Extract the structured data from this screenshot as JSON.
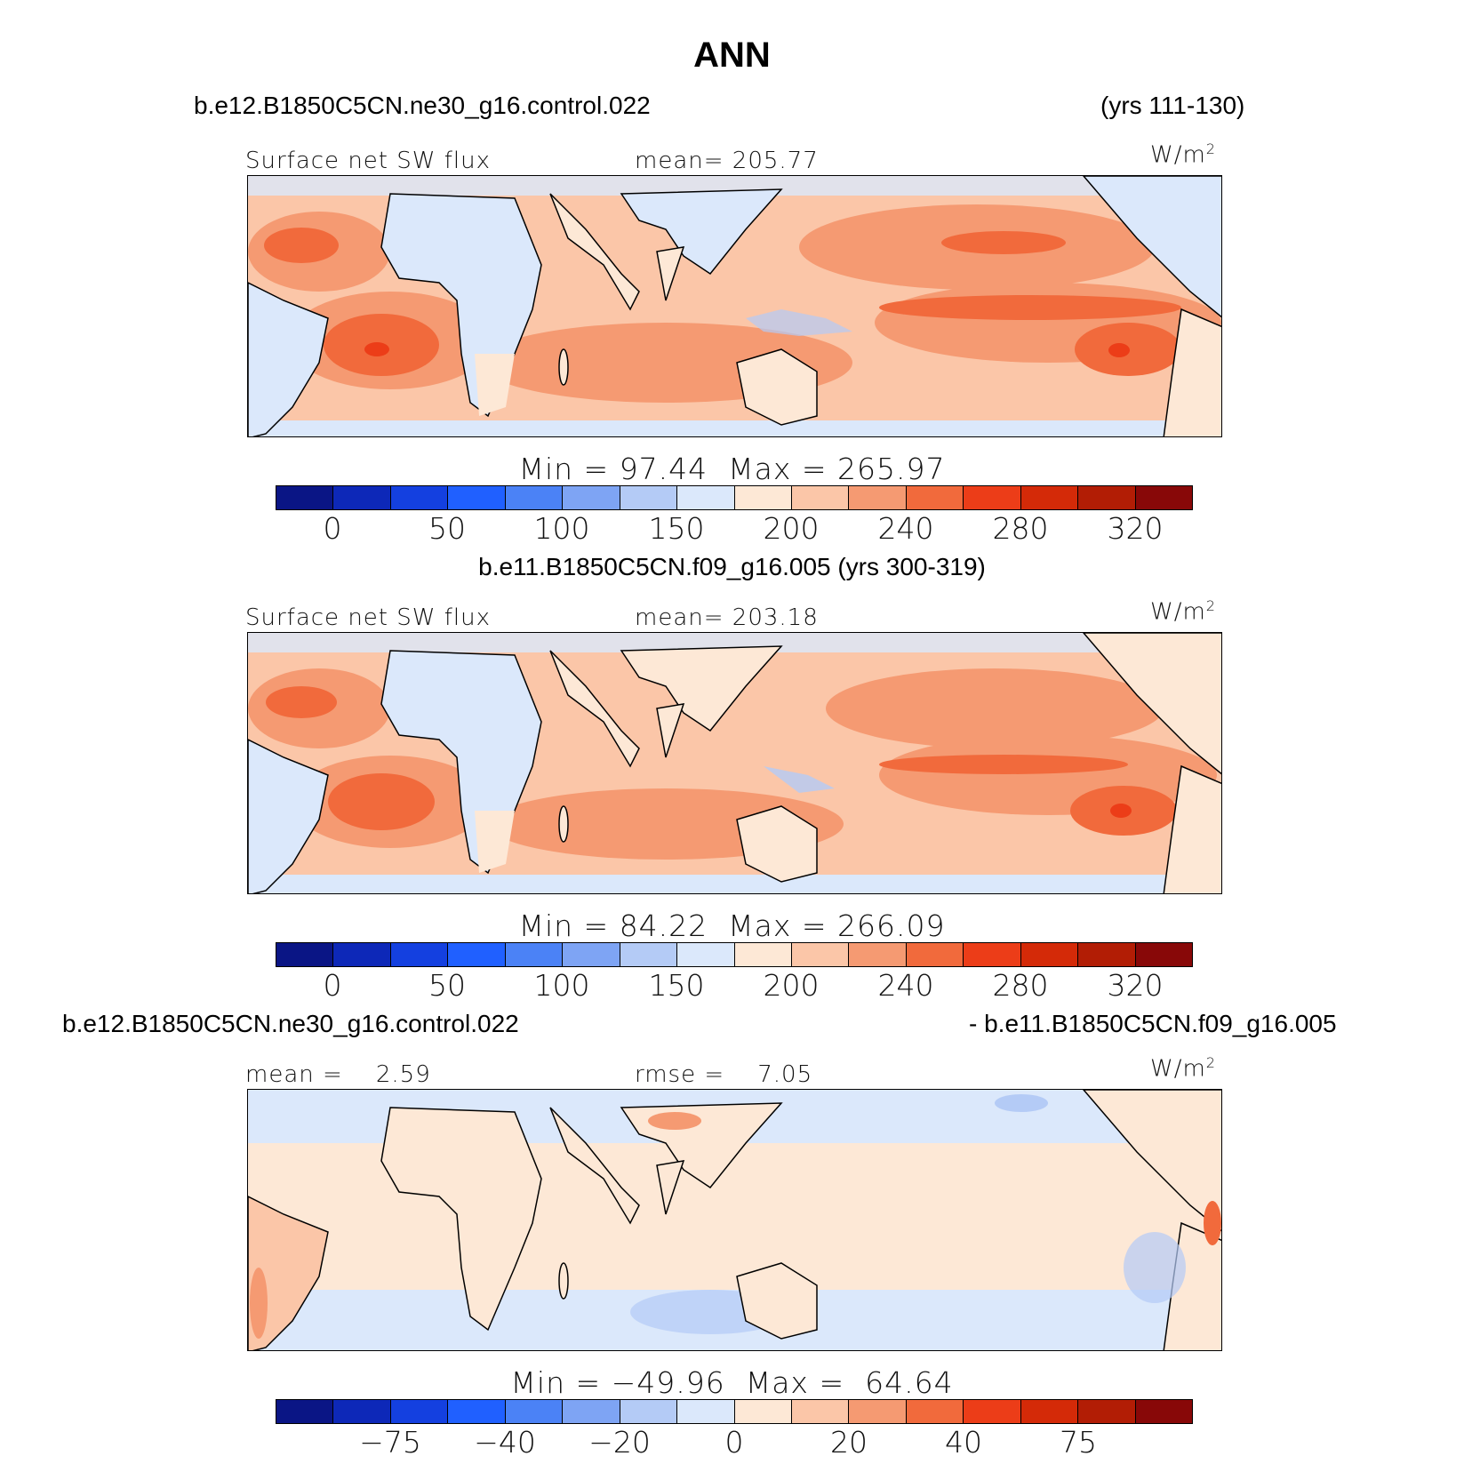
{
  "title": "ANN",
  "panels": [
    {
      "case_left": "b.e12.B1850C5CN.ne30_g16.control.022",
      "case_right": "(yrs 111-130)",
      "var_label": "Surface net SW flux",
      "stat_label": "mean= 205.77",
      "units": "W/m",
      "units_sup": "2",
      "min_label": "Min",
      "min_value": "97.44",
      "max_label": "Max",
      "max_value": "265.97",
      "ticks": [
        "0",
        "50",
        "100",
        "150",
        "200",
        "240",
        "280",
        "320"
      ]
    },
    {
      "case_center": "b.e11.B1850C5CN.f09_g16.005 (yrs 300-319)",
      "var_label": "Surface net SW flux",
      "stat_label": "mean= 203.18",
      "units": "W/m",
      "units_sup": "2",
      "min_label": "Min",
      "min_value": "84.22",
      "max_label": "Max",
      "max_value": "266.09",
      "ticks": [
        "0",
        "50",
        "100",
        "150",
        "200",
        "240",
        "280",
        "320"
      ]
    },
    {
      "case_left": "b.e12.B1850C5CN.ne30_g16.control.022",
      "case_right": "- b.e11.B1850C5CN.f09_g16.005",
      "mean_label": "mean =",
      "mean_value": "2.59",
      "rmse_label": "rmse =",
      "rmse_value": "7.05",
      "units": "W/m",
      "units_sup": "2",
      "min_label": "Min",
      "min_value": "−49.96",
      "max_label": "Max",
      "max_value": "64.64",
      "ticks": [
        "−75",
        "−40",
        "−20",
        "0",
        "20",
        "40",
        "75"
      ]
    }
  ],
  "colorbar_colors": [
    "#0a1585",
    "#0d28b8",
    "#1440e0",
    "#2060ff",
    "#4b82f6",
    "#7ea4f4",
    "#b4cbf6",
    "#dbe8fb",
    "#fde8d6",
    "#fbc6a8",
    "#f59a72",
    "#f16a3c",
    "#ec3d18",
    "#d42a08",
    "#b21d05",
    "#880808"
  ]
}
